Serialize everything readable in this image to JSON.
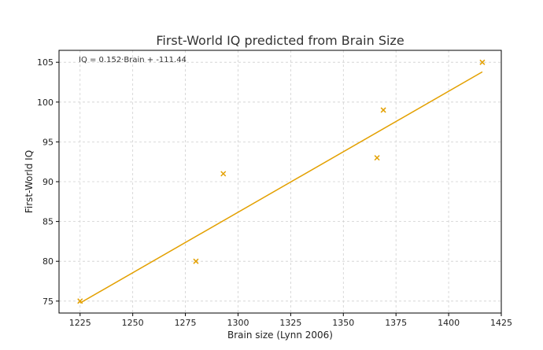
{
  "chart_data": {
    "type": "scatter",
    "title": "First-World IQ predicted from Brain Size",
    "xlabel": "Brain size (Lynn 2006)",
    "ylabel": "First-World IQ",
    "xlim": [
      1215,
      1425
    ],
    "ylim": [
      73.5,
      106.5
    ],
    "xticks": [
      1225,
      1250,
      1275,
      1300,
      1325,
      1350,
      1375,
      1400,
      1425
    ],
    "yticks": [
      75,
      80,
      85,
      90,
      95,
      100,
      105
    ],
    "grid": true,
    "series": [
      {
        "marker": "x",
        "color": "#E3A000",
        "points": [
          {
            "x": 1225,
            "y": 75
          },
          {
            "x": 1280,
            "y": 80
          },
          {
            "x": 1293,
            "y": 91
          },
          {
            "x": 1366,
            "y": 93
          },
          {
            "x": 1369,
            "y": 99
          },
          {
            "x": 1416,
            "y": 105
          }
        ]
      }
    ],
    "fit_line": {
      "color": "#E3A000",
      "slope": 0.152,
      "intercept": -111.44,
      "x_range": [
        1225,
        1416
      ]
    },
    "annotation": "IQ = 0.152·Brain + -111.44"
  }
}
